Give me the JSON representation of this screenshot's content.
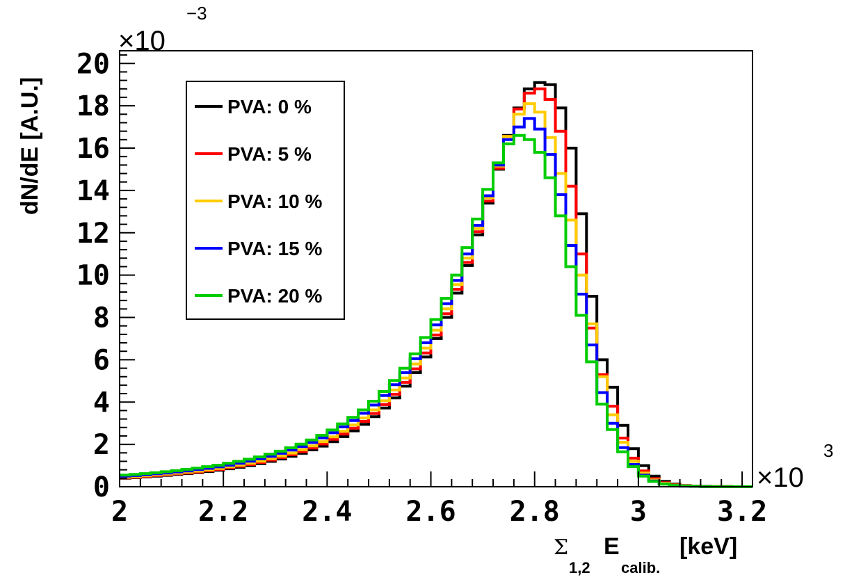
{
  "chart_data": {
    "type": "line",
    "style": "step-histogram",
    "x_label": {
      "symbol": "Σ",
      "symbol_subscript": "1,2",
      "main": "E",
      "main_subscript": "calib.",
      "unit": "[keV]"
    },
    "ylabel": "dN/dE [A.U.]",
    "y_exponent": {
      "base": "×10",
      "power": "−3"
    },
    "x_exponent": {
      "base": "×10",
      "power": "3"
    },
    "xlim": [
      2.0,
      3.22
    ],
    "ylim": [
      0,
      20.6
    ],
    "x_ticks": [
      {
        "value": 2.0,
        "label": "2"
      },
      {
        "value": 2.2,
        "label": "2.2"
      },
      {
        "value": 2.4,
        "label": "2.4"
      },
      {
        "value": 2.6,
        "label": "2.6"
      },
      {
        "value": 2.8,
        "label": "2.8"
      },
      {
        "value": 3.0,
        "label": "3"
      },
      {
        "value": 3.2,
        "label": "3.2"
      }
    ],
    "y_ticks": [
      {
        "value": 0,
        "label": "0"
      },
      {
        "value": 2,
        "label": "2"
      },
      {
        "value": 4,
        "label": "4"
      },
      {
        "value": 6,
        "label": "6"
      },
      {
        "value": 8,
        "label": "8"
      },
      {
        "value": 10,
        "label": "10"
      },
      {
        "value": 12,
        "label": "12"
      },
      {
        "value": 14,
        "label": "14"
      },
      {
        "value": 16,
        "label": "16"
      },
      {
        "value": 18,
        "label": "18"
      },
      {
        "value": 20,
        "label": "20"
      }
    ],
    "bin_edges": [
      2.0,
      2.02,
      2.04,
      2.06,
      2.08,
      2.1,
      2.12,
      2.14,
      2.16,
      2.18,
      2.2,
      2.22,
      2.24,
      2.26,
      2.28,
      2.3,
      2.32,
      2.34,
      2.36,
      2.38,
      2.4,
      2.42,
      2.44,
      2.46,
      2.48,
      2.5,
      2.52,
      2.54,
      2.56,
      2.58,
      2.6,
      2.62,
      2.64,
      2.66,
      2.68,
      2.7,
      2.72,
      2.74,
      2.76,
      2.78,
      2.8,
      2.82,
      2.84,
      2.86,
      2.88,
      2.9,
      2.92,
      2.94,
      2.96,
      2.98,
      3.0,
      3.02,
      3.04,
      3.06,
      3.08,
      3.1,
      3.12,
      3.14,
      3.16,
      3.18,
      3.2,
      3.22
    ],
    "legend": {
      "position": "top-left"
    },
    "series": [
      {
        "name": "PVA: 0 %",
        "color": "#000000",
        "values": [
          0.4,
          0.43,
          0.47,
          0.5,
          0.54,
          0.58,
          0.62,
          0.67,
          0.72,
          0.78,
          0.85,
          0.92,
          1.0,
          1.09,
          1.2,
          1.31,
          1.44,
          1.58,
          1.74,
          1.92,
          2.13,
          2.37,
          2.64,
          2.95,
          3.31,
          3.72,
          4.2,
          4.75,
          5.39,
          6.13,
          7.0,
          8.0,
          9.15,
          10.45,
          11.9,
          13.4,
          15.0,
          16.6,
          17.9,
          18.8,
          19.1,
          19.0,
          17.9,
          16.0,
          12.9,
          9.0,
          6.0,
          4.7,
          2.9,
          1.8,
          1.0,
          0.5,
          0.25,
          0.12,
          0.06,
          0.03,
          0.02,
          0.01,
          0.01,
          0.0,
          0.0
        ]
      },
      {
        "name": "PVA: 5 %",
        "color": "#ff0000",
        "values": [
          0.42,
          0.45,
          0.49,
          0.53,
          0.57,
          0.61,
          0.65,
          0.7,
          0.76,
          0.82,
          0.89,
          0.97,
          1.05,
          1.15,
          1.26,
          1.38,
          1.51,
          1.66,
          1.83,
          2.02,
          2.24,
          2.49,
          2.77,
          3.09,
          3.46,
          3.88,
          4.37,
          4.93,
          5.57,
          6.32,
          7.17,
          8.17,
          9.33,
          10.6,
          12.05,
          13.5,
          15.05,
          16.55,
          17.85,
          18.6,
          18.8,
          18.3,
          16.8,
          14.2,
          11.0,
          7.5,
          5.3,
          3.8,
          2.3,
          1.35,
          0.75,
          0.38,
          0.19,
          0.09,
          0.05,
          0.03,
          0.02,
          0.01,
          0.01,
          0.0,
          0.0
        ]
      },
      {
        "name": "PVA: 10 %",
        "color": "#ffcc00",
        "values": [
          0.45,
          0.48,
          0.52,
          0.56,
          0.6,
          0.64,
          0.69,
          0.74,
          0.8,
          0.86,
          0.94,
          1.02,
          1.11,
          1.21,
          1.32,
          1.45,
          1.59,
          1.75,
          1.93,
          2.13,
          2.36,
          2.62,
          2.92,
          3.25,
          3.63,
          4.06,
          4.57,
          5.14,
          5.8,
          6.55,
          7.4,
          8.4,
          9.55,
          10.8,
          12.2,
          13.65,
          15.15,
          16.55,
          17.6,
          18.1,
          17.7,
          16.5,
          14.8,
          12.6,
          10.0,
          7.7,
          5.2,
          3.4,
          2.1,
          1.2,
          0.65,
          0.32,
          0.16,
          0.08,
          0.04,
          0.02,
          0.01,
          0.01,
          0.0,
          0.0,
          0.0
        ]
      },
      {
        "name": "PVA: 15 %",
        "color": "#0000ff",
        "values": [
          0.5,
          0.53,
          0.57,
          0.61,
          0.65,
          0.7,
          0.75,
          0.81,
          0.87,
          0.94,
          1.02,
          1.11,
          1.21,
          1.32,
          1.44,
          1.58,
          1.73,
          1.9,
          2.09,
          2.31,
          2.55,
          2.83,
          3.13,
          3.47,
          3.86,
          4.31,
          4.82,
          5.39,
          6.05,
          6.8,
          7.65,
          8.65,
          9.75,
          11.0,
          12.35,
          13.75,
          15.2,
          16.4,
          17.0,
          17.4,
          16.9,
          15.7,
          13.8,
          11.4,
          9.1,
          6.7,
          4.45,
          3.0,
          1.85,
          1.05,
          0.55,
          0.27,
          0.13,
          0.06,
          0.03,
          0.02,
          0.01,
          0.0,
          0.0,
          0.0,
          0.0
        ]
      },
      {
        "name": "PVA: 20 %",
        "color": "#00cc00",
        "values": [
          0.55,
          0.58,
          0.62,
          0.66,
          0.71,
          0.76,
          0.82,
          0.88,
          0.95,
          1.02,
          1.11,
          1.2,
          1.3,
          1.41,
          1.54,
          1.68,
          1.84,
          2.01,
          2.21,
          2.43,
          2.68,
          2.97,
          3.28,
          3.63,
          4.04,
          4.5,
          5.02,
          5.6,
          6.28,
          7.05,
          7.9,
          8.9,
          10.0,
          11.3,
          12.65,
          14.05,
          15.3,
          16.2,
          16.6,
          16.4,
          15.8,
          14.6,
          12.8,
          10.4,
          8.1,
          5.9,
          3.9,
          2.7,
          1.65,
          0.95,
          0.5,
          0.25,
          0.12,
          0.06,
          0.03,
          0.02,
          0.01,
          0.0,
          0.0,
          0.0,
          0.0
        ]
      }
    ]
  }
}
